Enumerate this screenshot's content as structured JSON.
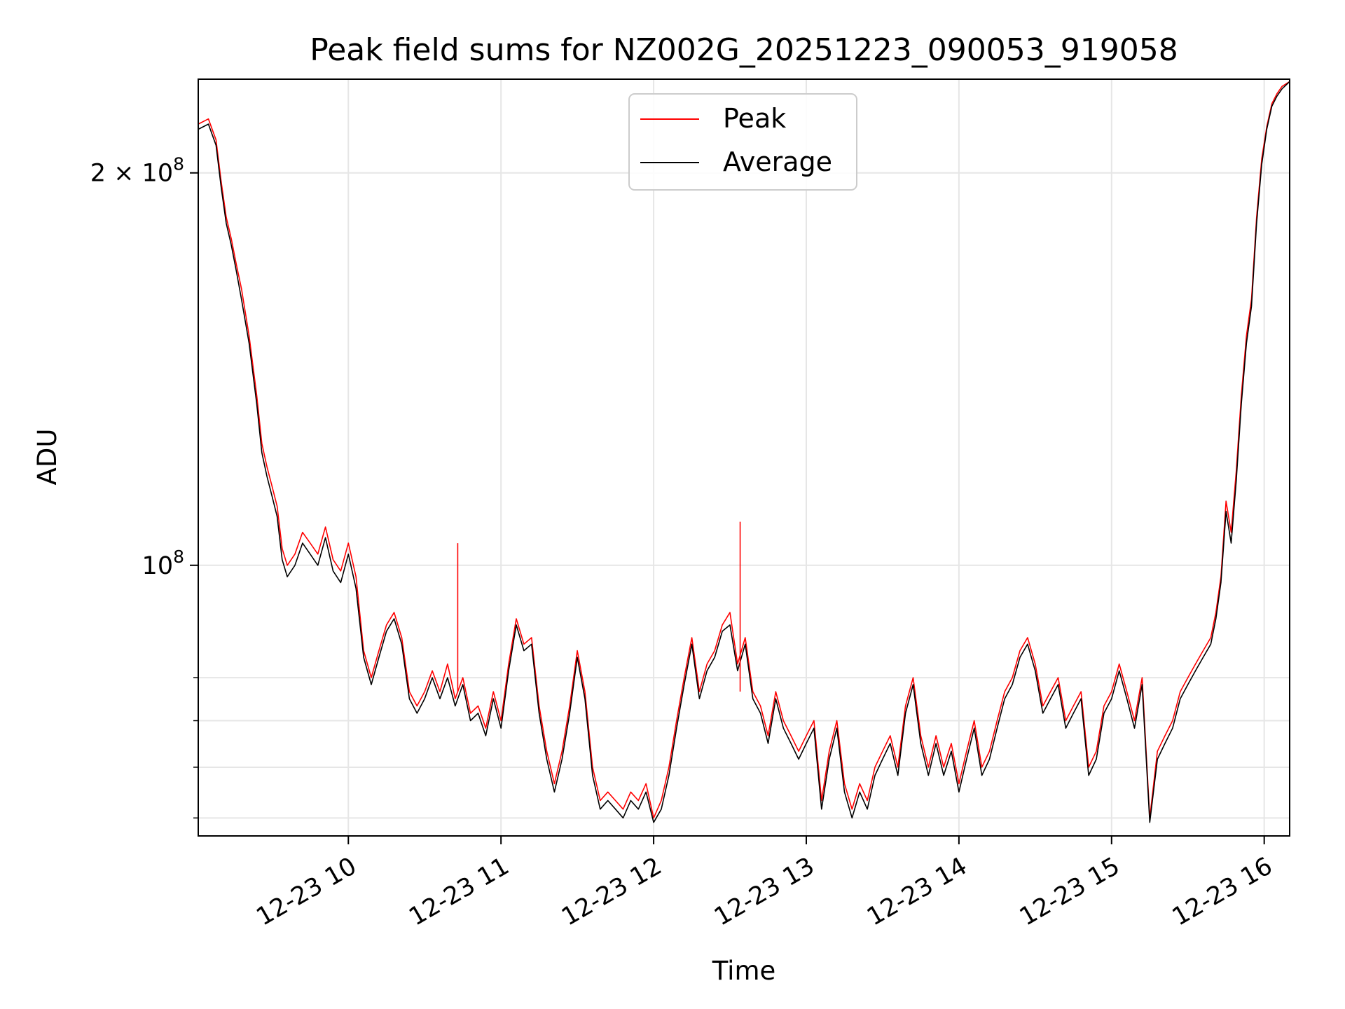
{
  "chart_data": {
    "type": "line",
    "title": "Peak field sums for NZ002G_20251223_090053_919058",
    "xlabel": "Time",
    "ylabel": "ADU",
    "yscale": "log",
    "grid": true,
    "legend": {
      "placement": "top-center"
    },
    "xlim": [
      "2025-12-23 09:01",
      "2025-12-23 16:10"
    ],
    "ylim": [
      62000000,
      236000000
    ],
    "x_ticks": [
      {
        "value": "2025-12-23 10:00",
        "label": "12-23 10"
      },
      {
        "value": "2025-12-23 11:00",
        "label": "12-23 11"
      },
      {
        "value": "2025-12-23 12:00",
        "label": "12-23 12"
      },
      {
        "value": "2025-12-23 13:00",
        "label": "12-23 13"
      },
      {
        "value": "2025-12-23 14:00",
        "label": "12-23 14"
      },
      {
        "value": "2025-12-23 15:00",
        "label": "12-23 15"
      },
      {
        "value": "2025-12-23 16:00",
        "label": "12-23 16"
      }
    ],
    "y_ticks": [
      {
        "value": 100000000,
        "base": "10",
        "exp": "8",
        "mult": ""
      },
      {
        "value": 200000000,
        "base": "10",
        "exp": "8",
        "mult": "2 × "
      }
    ],
    "y_minor_gridlines": [
      64000000,
      70000000,
      76000000,
      82000000
    ],
    "x": [
      "2025-12-23 09:01",
      "2025-12-23 09:05",
      "2025-12-23 09:08",
      "2025-12-23 09:10",
      "2025-12-23 09:12",
      "2025-12-23 09:14",
      "2025-12-23 09:16",
      "2025-12-23 09:18",
      "2025-12-23 09:21",
      "2025-12-23 09:24",
      "2025-12-23 09:26",
      "2025-12-23 09:28",
      "2025-12-23 09:30",
      "2025-12-23 09:32",
      "2025-12-23 09:34",
      "2025-12-23 09:36",
      "2025-12-23 09:39",
      "2025-12-23 09:42",
      "2025-12-23 09:45",
      "2025-12-23 09:48",
      "2025-12-23 09:51",
      "2025-12-23 09:54",
      "2025-12-23 09:57",
      "2025-12-23 10:00",
      "2025-12-23 10:03",
      "2025-12-23 10:06",
      "2025-12-23 10:09",
      "2025-12-23 10:12",
      "2025-12-23 10:15",
      "2025-12-23 10:18",
      "2025-12-23 10:21",
      "2025-12-23 10:24",
      "2025-12-23 10:27",
      "2025-12-23 10:30",
      "2025-12-23 10:33",
      "2025-12-23 10:36",
      "2025-12-23 10:39",
      "2025-12-23 10:42",
      "2025-12-23 10:45",
      "2025-12-23 10:48",
      "2025-12-23 10:51",
      "2025-12-23 10:54",
      "2025-12-23 10:57",
      "2025-12-23 11:00",
      "2025-12-23 11:03",
      "2025-12-23 11:06",
      "2025-12-23 11:09",
      "2025-12-23 11:12",
      "2025-12-23 11:15",
      "2025-12-23 11:18",
      "2025-12-23 11:21",
      "2025-12-23 11:24",
      "2025-12-23 11:27",
      "2025-12-23 11:30",
      "2025-12-23 11:33",
      "2025-12-23 11:36",
      "2025-12-23 11:39",
      "2025-12-23 11:42",
      "2025-12-23 11:45",
      "2025-12-23 11:48",
      "2025-12-23 11:51",
      "2025-12-23 11:54",
      "2025-12-23 11:57",
      "2025-12-23 12:00",
      "2025-12-23 12:03",
      "2025-12-23 12:06",
      "2025-12-23 12:09",
      "2025-12-23 12:12",
      "2025-12-23 12:15",
      "2025-12-23 12:18",
      "2025-12-23 12:21",
      "2025-12-23 12:24",
      "2025-12-23 12:27",
      "2025-12-23 12:30",
      "2025-12-23 12:33",
      "2025-12-23 12:36",
      "2025-12-23 12:39",
      "2025-12-23 12:42",
      "2025-12-23 12:45",
      "2025-12-23 12:48",
      "2025-12-23 12:51",
      "2025-12-23 12:54",
      "2025-12-23 12:57",
      "2025-12-23 13:00",
      "2025-12-23 13:03",
      "2025-12-23 13:06",
      "2025-12-23 13:09",
      "2025-12-23 13:12",
      "2025-12-23 13:15",
      "2025-12-23 13:18",
      "2025-12-23 13:21",
      "2025-12-23 13:24",
      "2025-12-23 13:27",
      "2025-12-23 13:30",
      "2025-12-23 13:33",
      "2025-12-23 13:36",
      "2025-12-23 13:39",
      "2025-12-23 13:42",
      "2025-12-23 13:45",
      "2025-12-23 13:48",
      "2025-12-23 13:51",
      "2025-12-23 13:54",
      "2025-12-23 13:57",
      "2025-12-23 14:00",
      "2025-12-23 14:03",
      "2025-12-23 14:06",
      "2025-12-23 14:09",
      "2025-12-23 14:12",
      "2025-12-23 14:15",
      "2025-12-23 14:18",
      "2025-12-23 14:21",
      "2025-12-23 14:24",
      "2025-12-23 14:27",
      "2025-12-23 14:30",
      "2025-12-23 14:33",
      "2025-12-23 14:36",
      "2025-12-23 14:39",
      "2025-12-23 14:42",
      "2025-12-23 14:45",
      "2025-12-23 14:48",
      "2025-12-23 14:51",
      "2025-12-23 14:54",
      "2025-12-23 14:57",
      "2025-12-23 15:00",
      "2025-12-23 15:03",
      "2025-12-23 15:06",
      "2025-12-23 15:09",
      "2025-12-23 15:12",
      "2025-12-23 15:15",
      "2025-12-23 15:18",
      "2025-12-23 15:21",
      "2025-12-23 15:24",
      "2025-12-23 15:27",
      "2025-12-23 15:30",
      "2025-12-23 15:33",
      "2025-12-23 15:36",
      "2025-12-23 15:39",
      "2025-12-23 15:41",
      "2025-12-23 15:43",
      "2025-12-23 15:45",
      "2025-12-23 15:47",
      "2025-12-23 15:49",
      "2025-12-23 15:51",
      "2025-12-23 15:53",
      "2025-12-23 15:55",
      "2025-12-23 15:57",
      "2025-12-23 15:59",
      "2025-12-23 16:01",
      "2025-12-23 16:03",
      "2025-12-23 16:05",
      "2025-12-23 16:07",
      "2025-12-23 16:10"
    ],
    "series": [
      {
        "name": "Peak",
        "color": "#ff0000",
        "values": [
          218000000,
          220000000,
          212000000,
          197000000,
          185000000,
          178000000,
          170000000,
          163000000,
          150000000,
          135000000,
          124000000,
          119000000,
          115000000,
          111000000,
          103000000,
          100000000,
          102000000,
          106000000,
          104000000,
          102000000,
          107000000,
          101000000,
          99000000,
          104000000,
          98000000,
          86000000,
          82000000,
          86000000,
          90000000,
          92000000,
          88000000,
          80000000,
          78000000,
          80000000,
          83000000,
          80000000,
          84000000,
          79000000,
          82000000,
          77000000,
          78000000,
          75000000,
          80000000,
          76000000,
          84000000,
          91000000,
          87000000,
          88000000,
          78000000,
          72000000,
          68000000,
          72000000,
          78000000,
          86000000,
          80000000,
          70000000,
          66000000,
          67000000,
          66000000,
          65000000,
          67000000,
          66000000,
          68000000,
          64000000,
          66000000,
          70000000,
          76000000,
          82000000,
          88000000,
          80000000,
          84000000,
          86000000,
          90000000,
          92000000,
          84000000,
          88000000,
          80000000,
          78000000,
          74000000,
          80000000,
          76000000,
          74000000,
          72000000,
          74000000,
          76000000,
          66000000,
          72000000,
          76000000,
          68000000,
          65000000,
          68000000,
          66000000,
          70000000,
          72000000,
          74000000,
          70000000,
          78000000,
          82000000,
          74000000,
          70000000,
          74000000,
          70000000,
          73000000,
          68000000,
          72000000,
          76000000,
          70000000,
          72000000,
          76000000,
          80000000,
          82000000,
          86000000,
          88000000,
          84000000,
          78000000,
          80000000,
          82000000,
          76000000,
          78000000,
          80000000,
          70000000,
          72000000,
          78000000,
          80000000,
          84000000,
          80000000,
          76000000,
          82000000,
          64000000,
          72000000,
          74000000,
          76000000,
          80000000,
          82000000,
          84000000,
          86000000,
          88000000,
          92000000,
          98000000,
          112000000,
          106000000,
          118000000,
          135000000,
          150000000,
          160000000,
          185000000,
          205000000,
          217000000,
          226000000,
          230000000,
          233000000,
          235000000
        ]
      },
      {
        "name": "Average",
        "color": "#000000",
        "values": [
          216000000,
          218000000,
          210000000,
          195000000,
          183000000,
          176000000,
          168000000,
          160000000,
          148000000,
          133000000,
          122000000,
          117000000,
          113000000,
          109000000,
          101000000,
          98000000,
          100000000,
          104000000,
          102000000,
          100000000,
          105000000,
          99000000,
          97000000,
          102000000,
          96000000,
          85000000,
          81000000,
          85000000,
          89000000,
          91000000,
          87000000,
          79000000,
          77000000,
          79000000,
          82000000,
          79000000,
          82000000,
          78000000,
          81000000,
          76000000,
          77000000,
          74000000,
          79000000,
          75000000,
          83000000,
          90000000,
          86000000,
          87000000,
          77000000,
          71000000,
          67000000,
          71000000,
          77000000,
          85000000,
          79000000,
          69000000,
          65000000,
          66000000,
          65000000,
          64000000,
          66000000,
          65000000,
          67000000,
          63500000,
          65000000,
          69000000,
          75000000,
          81000000,
          87000000,
          79000000,
          83000000,
          85000000,
          89000000,
          90000000,
          83000000,
          87000000,
          79000000,
          77000000,
          73000000,
          79000000,
          75000000,
          73000000,
          71000000,
          73000000,
          75000000,
          65000000,
          71000000,
          75000000,
          67000000,
          64000000,
          67000000,
          65000000,
          69000000,
          71000000,
          73000000,
          69000000,
          77000000,
          81000000,
          73000000,
          69000000,
          73000000,
          69000000,
          72000000,
          67000000,
          71000000,
          75000000,
          69000000,
          71000000,
          75000000,
          79000000,
          81000000,
          85000000,
          87000000,
          83000000,
          77000000,
          79000000,
          81000000,
          75000000,
          77000000,
          79000000,
          69000000,
          71000000,
          77000000,
          79000000,
          83000000,
          79000000,
          75000000,
          81000000,
          63500000,
          71000000,
          73000000,
          75000000,
          79000000,
          81000000,
          83000000,
          85000000,
          87000000,
          91000000,
          97000000,
          110000000,
          104000000,
          116000000,
          133000000,
          148000000,
          158000000,
          183000000,
          203000000,
          216000000,
          225000000,
          229000000,
          232000000,
          235000000
        ]
      }
    ],
    "annotations": [
      {
        "series": "Peak",
        "x": "2025-12-23 10:43",
        "y": 104000000
      },
      {
        "series": "Peak",
        "x": "2025-12-23 12:34",
        "y": 108000000
      }
    ]
  }
}
